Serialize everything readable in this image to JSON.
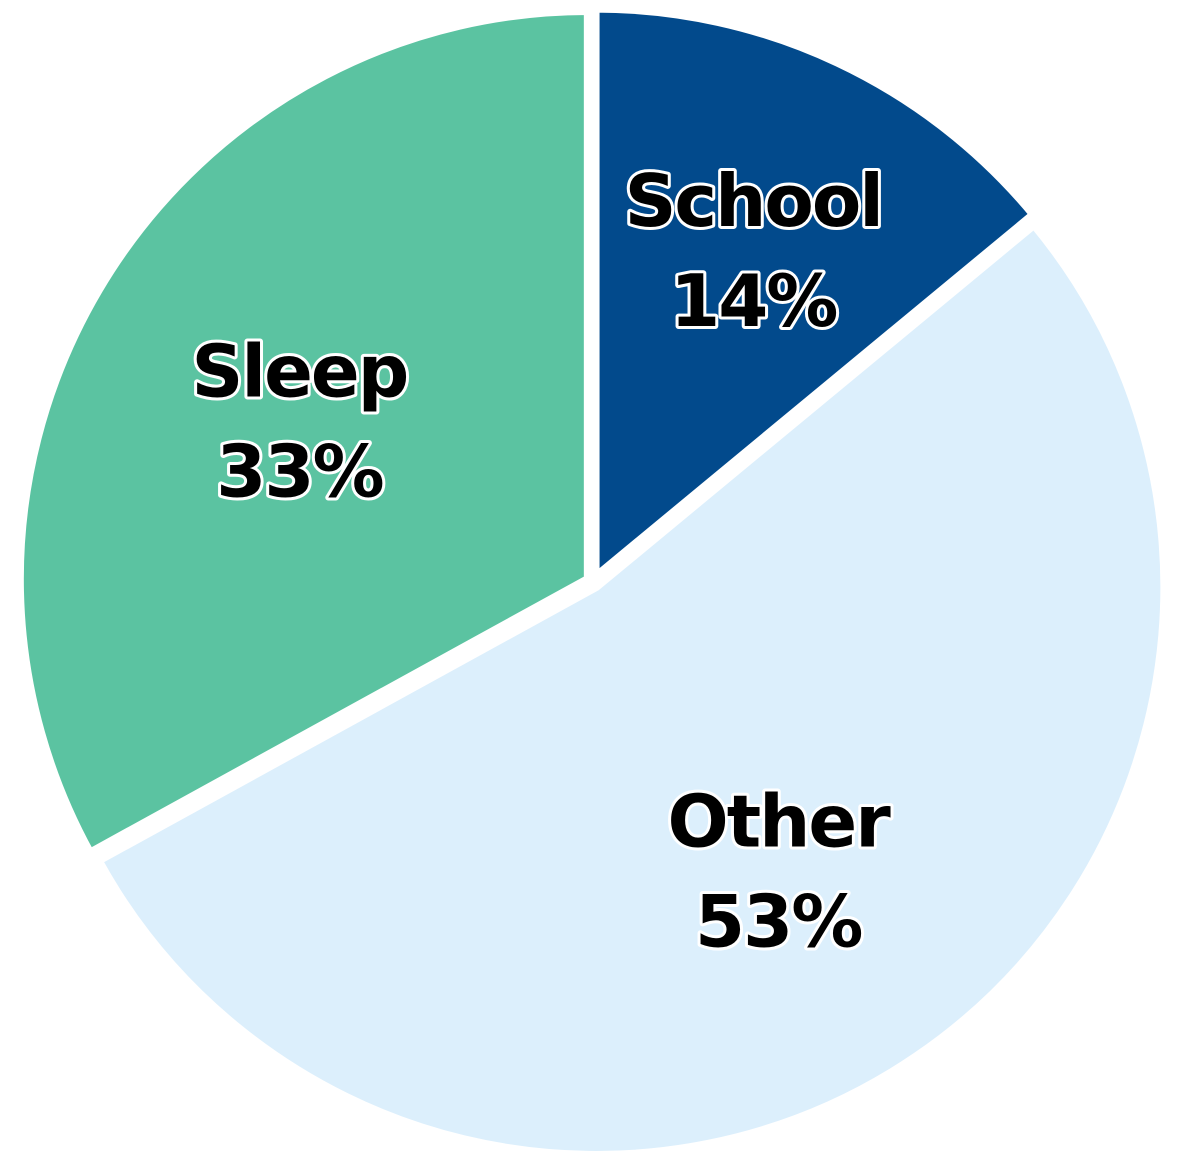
{
  "chart_data": {
    "type": "pie",
    "title": "",
    "start_angle_deg": 0,
    "direction": "clockwise",
    "slices": [
      {
        "label": "School",
        "value": 14,
        "value_label": "14%",
        "color": "#024A8C"
      },
      {
        "label": "Other",
        "value": 53,
        "value_label": "53%",
        "color": "#DCEFFC"
      },
      {
        "label": "Sleep",
        "value": 33,
        "value_label": "33%",
        "color": "#5BC3A1"
      }
    ]
  }
}
